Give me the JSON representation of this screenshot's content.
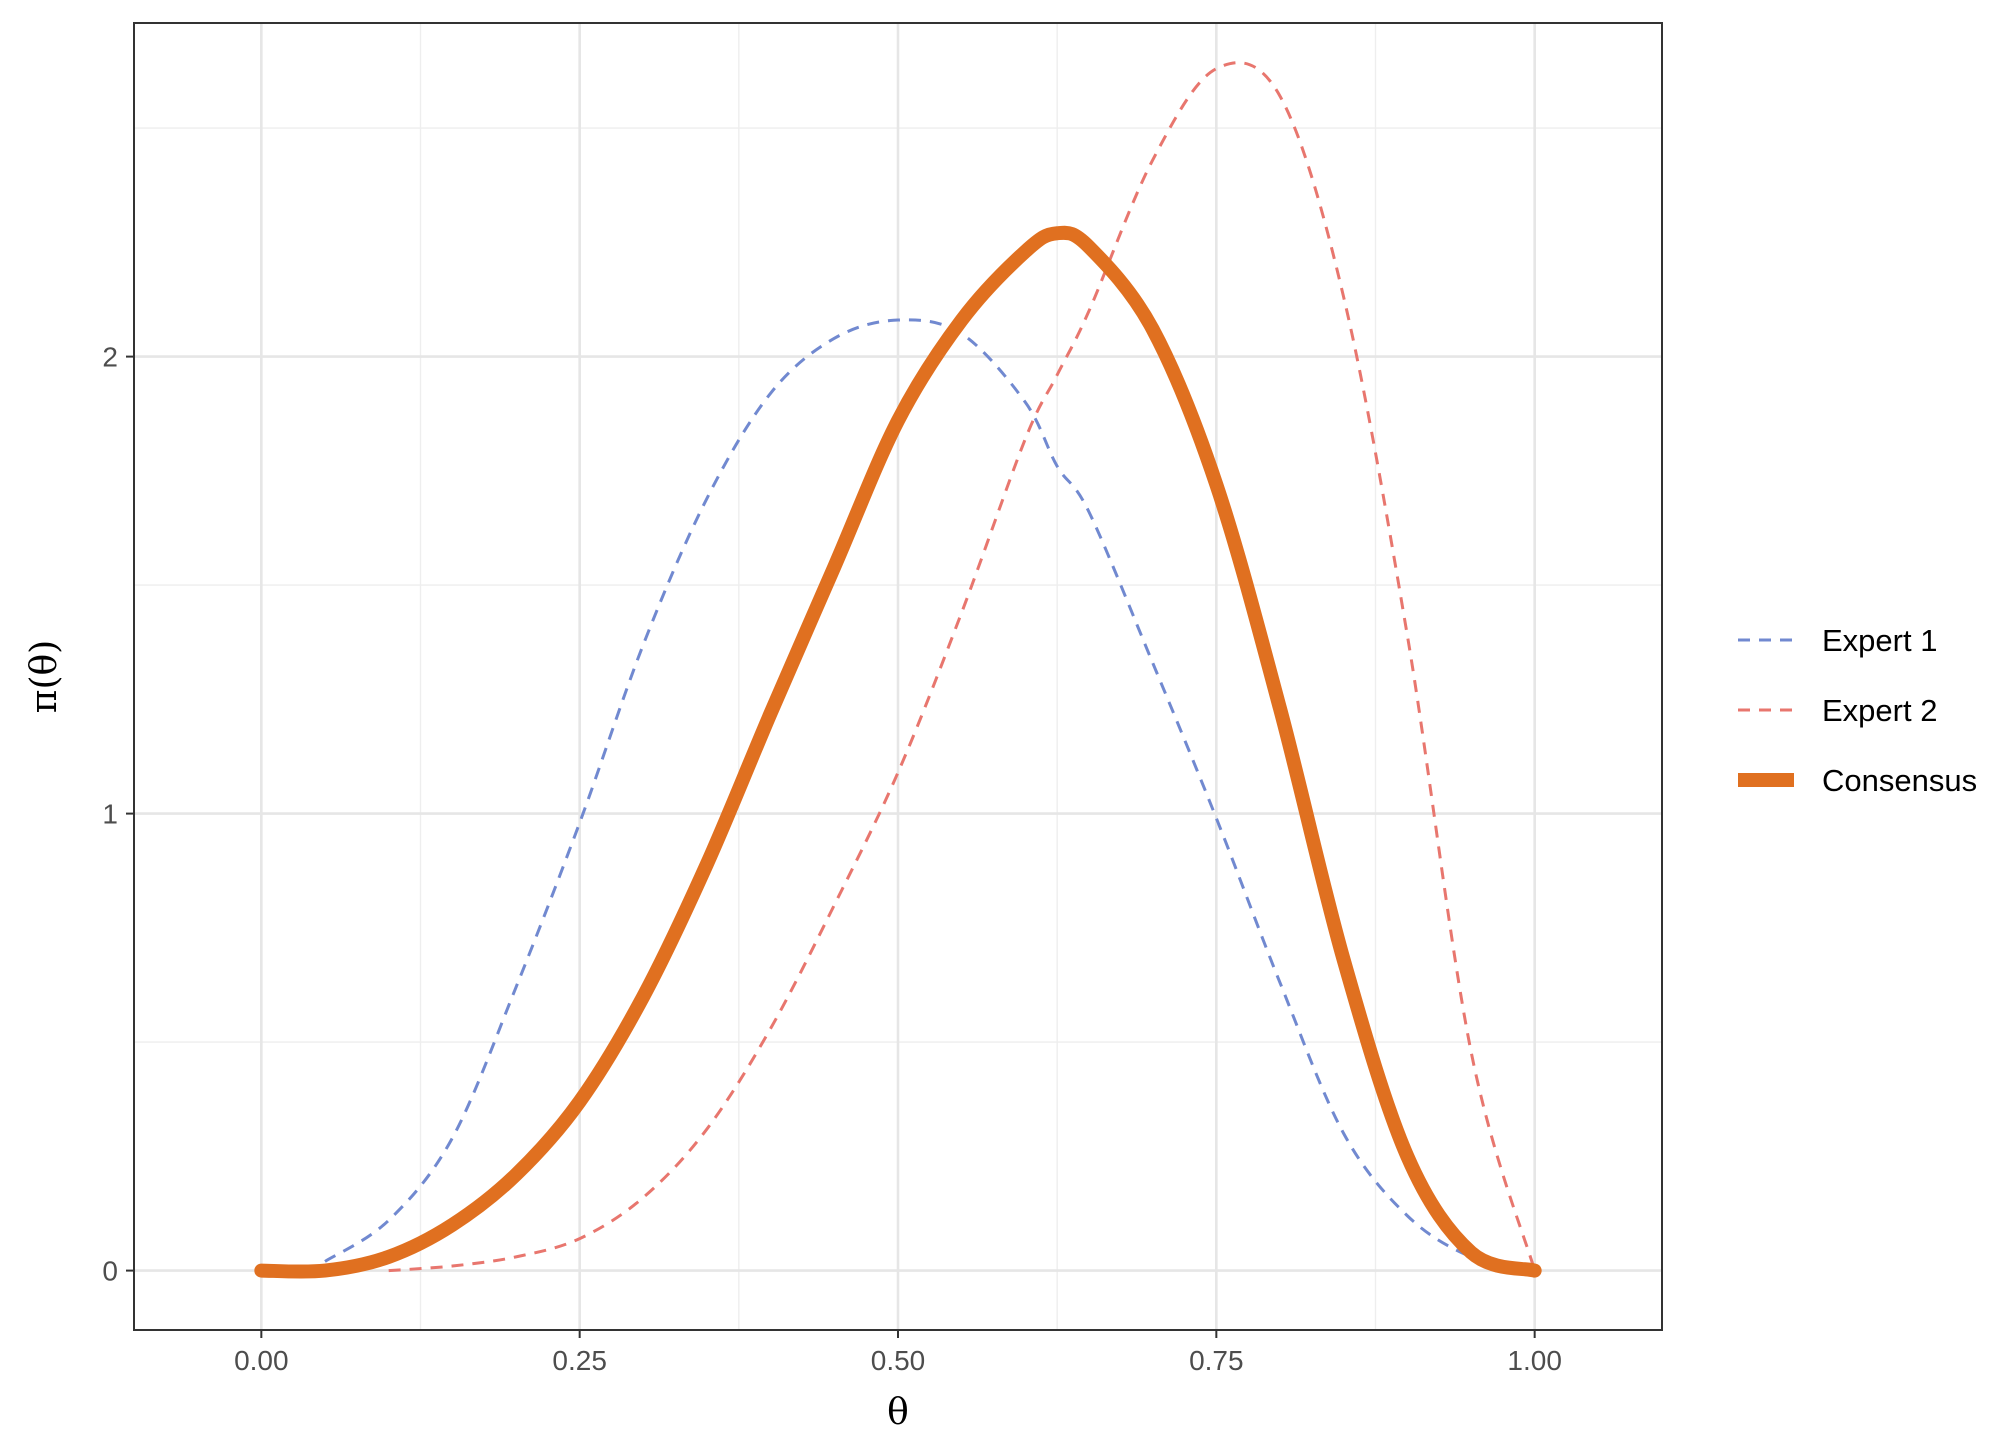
{
  "chart_data": {
    "type": "line",
    "title": "",
    "xlabel": "θ",
    "ylabel": "π(θ)",
    "xlim": [
      -0.1,
      1.1
    ],
    "ylim": [
      -0.13,
      2.73
    ],
    "x_ticks": [
      0,
      0.25,
      0.5,
      0.75,
      1
    ],
    "x_tick_labels": [
      "0.00",
      "0.25",
      "0.50",
      "0.75",
      "1.00"
    ],
    "y_ticks": [
      0,
      1,
      2
    ],
    "y_tick_labels": [
      "0",
      "1",
      "2"
    ],
    "grid": true,
    "legend_position": "right",
    "x": [
      0,
      0.05,
      0.1,
      0.15,
      0.2,
      0.25,
      0.3,
      0.35,
      0.4,
      0.45,
      0.5,
      0.55,
      0.6,
      0.625,
      0.65,
      0.7,
      0.75,
      0.8,
      0.85,
      0.9,
      0.95,
      1
    ],
    "series": [
      {
        "name": "Expert 1",
        "style": "dashed",
        "color": "#7189D0",
        "values": [
          null,
          0.02,
          0.11,
          0.29,
          0.62,
          0.98,
          1.37,
          1.69,
          1.92,
          2.04,
          2.08,
          2.05,
          1.9,
          1.76,
          1.66,
          1.33,
          0.99,
          0.63,
          0.3,
          0.12,
          0.03,
          0.0
        ]
      },
      {
        "name": "Expert 2",
        "style": "dashed",
        "color": "#E8766E",
        "values": [
          null,
          null,
          0.0,
          0.01,
          0.03,
          0.07,
          0.16,
          0.31,
          0.53,
          0.8,
          1.09,
          1.44,
          1.82,
          1.96,
          2.1,
          2.43,
          2.63,
          2.57,
          2.13,
          1.39,
          0.48,
          0.0
        ]
      },
      {
        "name": "Consensus",
        "style": "solid",
        "color": "#E07020",
        "values": [
          0.0,
          0.0,
          0.03,
          0.1,
          0.21,
          0.37,
          0.6,
          0.89,
          1.22,
          1.54,
          1.86,
          2.08,
          2.23,
          2.27,
          2.24,
          2.06,
          1.72,
          1.23,
          0.68,
          0.25,
          0.04,
          0.0
        ]
      }
    ]
  }
}
